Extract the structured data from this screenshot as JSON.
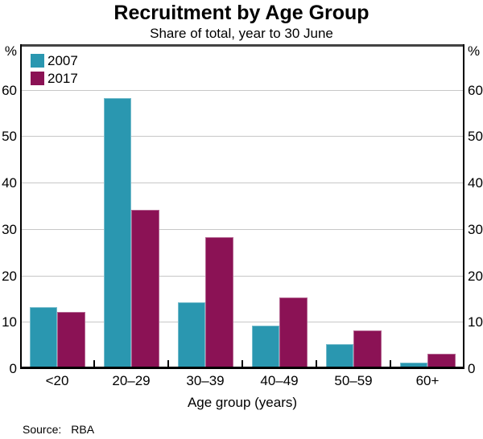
{
  "chart_data": {
    "type": "bar",
    "title": "Recruitment by Age Group",
    "subtitle": "Share of total, year to 30 June",
    "categories": [
      "<20",
      "20–29",
      "30–39",
      "40–49",
      "50–59",
      "60+"
    ],
    "series": [
      {
        "name": "2007",
        "color": "#2A97B0",
        "values": [
          13,
          58,
          14,
          9,
          5,
          1
        ]
      },
      {
        "name": "2017",
        "color": "#8B1255",
        "values": [
          12,
          34,
          28,
          15,
          8,
          3
        ]
      }
    ],
    "xlabel": "Age group (years)",
    "ylabel_left": "%",
    "ylabel_right": "%",
    "ylim": [
      0,
      70
    ],
    "yticks": [
      0,
      10,
      20,
      30,
      40,
      50,
      60
    ],
    "grid": true,
    "legend_position": "top-left",
    "gridline_color": "#c7c7c7"
  },
  "source": {
    "label": "Source:",
    "value": "RBA"
  }
}
